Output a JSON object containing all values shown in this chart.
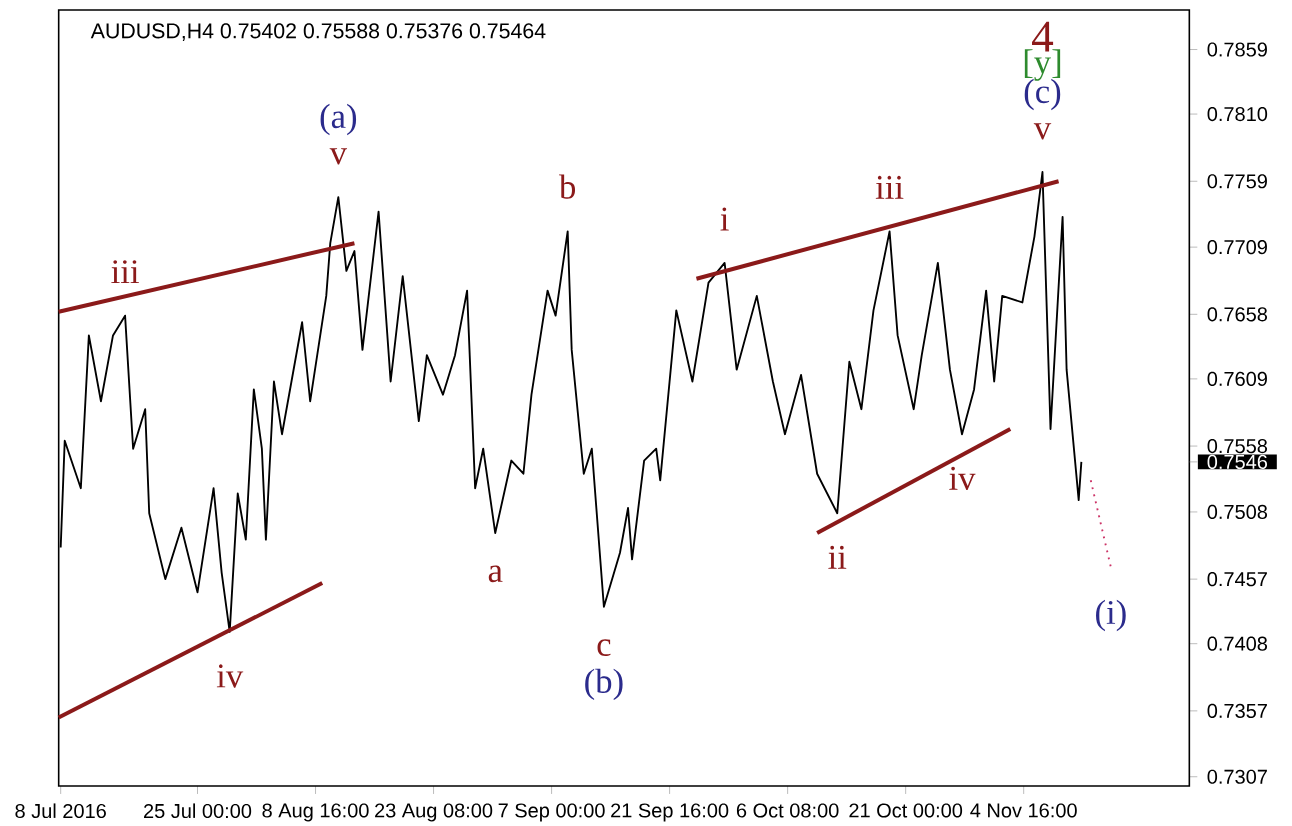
{
  "chart_data": {
    "type": "line",
    "title": "AUDUSD,H4  0.75402 0.75588 0.75376 0.75464",
    "xlim": [
      "2016-07-07T18:00",
      "2016-11-25T06:00"
    ],
    "ylim": [
      0.73,
      0.7889
    ],
    "xticks": [
      {
        "value": "2016-07-08",
        "label": "8 Jul 2016"
      },
      {
        "value": "2016-07-25T00:00",
        "label": "25 Jul 00:00"
      },
      {
        "value": "2016-08-08T16:00",
        "label": "8 Aug 16:00"
      },
      {
        "value": "2016-08-23T08:00",
        "label": "23 Aug 08:00"
      },
      {
        "value": "2016-09-07T00:00",
        "label": "7 Sep 00:00"
      },
      {
        "value": "2016-09-21T16:00",
        "label": "21 Sep 16:00"
      },
      {
        "value": "2016-10-06T08:00",
        "label": "6 Oct 08:00"
      },
      {
        "value": "2016-10-21T00:00",
        "label": "21 Oct 00:00"
      },
      {
        "value": "2016-11-04T16:00",
        "label": "4 Nov 16:00"
      }
    ],
    "yticks": [
      0.7307,
      0.7357,
      0.7408,
      0.7457,
      0.7508,
      0.7546,
      0.7558,
      0.7609,
      0.7658,
      0.7709,
      0.7759,
      {
        "value": 0.781,
        "label": "0.7810"
      },
      0.7859
    ],
    "series": [
      {
        "color": "#000000",
        "x": [
          "2016-07-08",
          "2016-07-08T12:00",
          "2016-07-10T12:00",
          "2016-07-11T12:00",
          "2016-07-13",
          "2016-07-14T12:00",
          "2016-07-16",
          "2016-07-17",
          "2016-07-18T12:00",
          "2016-07-19",
          "2016-07-21",
          "2016-07-23",
          "2016-07-25",
          "2016-07-27",
          "2016-07-28",
          "2016-07-29",
          "2016-07-30",
          "2016-07-31",
          "2016-08-01",
          "2016-08-02",
          "2016-08-02T12:00",
          "2016-08-03T12:00",
          "2016-08-04T12:00",
          "2016-08-07",
          "2016-08-08",
          "2016-08-10",
          "2016-08-10T12:00",
          "2016-08-11T12:00",
          "2016-08-12T12:00",
          "2016-08-13T12:00",
          "2016-08-14T12:00",
          "2016-08-16T12:00",
          "2016-08-18",
          "2016-08-19T12:00",
          "2016-08-21T12:00",
          "2016-08-22T12:00",
          "2016-08-24T12:00",
          "2016-08-26",
          "2016-08-27T12:00",
          "2016-08-28T12:00",
          "2016-08-29T12:00",
          "2016-08-31",
          "2016-09-02",
          "2016-09-03T12:00",
          "2016-09-04T12:00",
          "2016-09-06T12:00",
          "2016-09-07T12:00",
          "2016-09-09",
          "2016-09-09T12:00",
          "2016-09-11",
          "2016-09-12",
          "2016-09-13T12:00",
          "2016-09-15T12:00",
          "2016-09-16T12:00",
          "2016-09-17",
          "2016-09-18T12:00",
          "2016-09-20",
          "2016-09-20T12:00",
          "2016-09-22T12:00",
          "2016-09-24T12:00",
          "2016-09-26T12:00",
          "2016-09-28T12:00",
          "2016-09-30",
          "2016-10-02T12:00",
          "2016-10-04T12:00",
          "2016-10-06",
          "2016-10-08",
          "2016-10-10",
          "2016-10-12T12:00",
          "2016-10-14",
          "2016-10-15T12:00",
          "2016-10-17",
          "2016-10-19",
          "2016-10-20",
          "2016-10-22",
          "2016-10-23",
          "2016-10-25",
          "2016-10-26T12:00",
          "2016-10-28",
          "2016-10-29T12:00",
          "2016-10-31",
          "2016-11-01",
          "2016-11-02",
          "2016-11-04T12:00",
          "2016-11-06",
          "2016-11-07",
          "2016-11-08",
          "2016-11-09T12:00",
          "2016-11-10",
          "2016-11-11T12:00",
          "2016-11-11T20:00"
        ],
        "values": [
          0.7481,
          0.7562,
          0.7526,
          0.7642,
          0.7592,
          0.7642,
          0.7657,
          0.7556,
          0.7586,
          0.7507,
          0.7457,
          0.7496,
          0.7447,
          0.7526,
          0.7462,
          0.7417,
          0.7522,
          0.7487,
          0.7601,
          0.7556,
          0.7487,
          0.7607,
          0.7567,
          0.7652,
          0.7592,
          0.7672,
          0.7712,
          0.7747,
          0.7691,
          0.7706,
          0.7631,
          0.7736,
          0.7607,
          0.7687,
          0.7577,
          0.7627,
          0.7597,
          0.7627,
          0.7676,
          0.7526,
          0.7556,
          0.7492,
          0.7547,
          0.7537,
          0.7597,
          0.7676,
          0.7657,
          0.7721,
          0.7631,
          0.7537,
          0.7556,
          0.7436,
          0.7477,
          0.7511,
          0.7472,
          0.7547,
          0.7556,
          0.7532,
          0.7661,
          0.7607,
          0.7682,
          0.7697,
          0.7616,
          0.7672,
          0.7607,
          0.7567,
          0.7612,
          0.7537,
          0.7507,
          0.7622,
          0.7586,
          0.7661,
          0.7721,
          0.7642,
          0.7586,
          0.7627,
          0.7697,
          0.7616,
          0.7567,
          0.7601,
          0.7676,
          0.7607,
          0.7672,
          0.7667,
          0.7717,
          0.7766,
          0.7571,
          0.7732,
          0.7616,
          0.7517,
          0.7546
        ]
      },
      {
        "color": "#8b1a1a",
        "x": [
          "2016-07-07T18:00",
          "2016-08-13T12:00"
        ],
        "values": [
          0.766,
          0.7712
        ]
      },
      {
        "color": "#8b1a1a",
        "x": [
          "2016-07-07T18:00",
          "2016-08-09T12:00"
        ],
        "values": [
          0.7352,
          0.7454
        ]
      },
      {
        "color": "#8b1a1a",
        "x": [
          "2016-09-25",
          "2016-11-09"
        ],
        "values": [
          0.7685,
          0.7759
        ]
      },
      {
        "color": "#8b1a1a",
        "x": [
          "2016-10-10",
          "2016-11-03"
        ],
        "values": [
          0.7492,
          0.7571
        ]
      },
      {
        "color": "#cc3366",
        "line_style": "dotted",
        "x": [
          "2016-11-13",
          "2016-11-15T12:00"
        ],
        "values": [
          0.7532,
          0.7466
        ]
      }
    ],
    "annotations": [
      {
        "text": "4",
        "x": "2016-11-07",
        "y": 0.7766
      },
      {
        "text": "[y]",
        "x": "2016-11-07",
        "y": 0.7766
      },
      {
        "text": "(c)",
        "x": "2016-11-07",
        "y": 0.7766
      },
      {
        "text": "v",
        "x": "2016-11-07",
        "y": 0.7766
      },
      {
        "text": "(a)",
        "x": "2016-08-11T12:00",
        "y": 0.7747
      },
      {
        "text": "v",
        "x": "2016-08-11T12:00",
        "y": 0.7747
      },
      {
        "text": "iii",
        "x": "2016-07-16",
        "y": 0.7657
      },
      {
        "text": "iv",
        "x": "2016-07-29",
        "y": 0.7417
      },
      {
        "text": "a",
        "x": "2016-08-31",
        "y": 0.7492
      },
      {
        "text": "b",
        "x": "2016-09-09",
        "y": 0.7721
      },
      {
        "text": "c",
        "x": "2016-09-13T12:00",
        "y": 0.7436
      },
      {
        "text": "(b)",
        "x": "2016-09-13T12:00",
        "y": 0.7436
      },
      {
        "text": "i",
        "x": "2016-09-28T12:00",
        "y": 0.7697
      },
      {
        "text": "iii",
        "x": "2016-10-19",
        "y": 0.7721
      },
      {
        "text": "ii",
        "x": "2016-10-12T12:00",
        "y": 0.7507
      },
      {
        "text": "iv",
        "x": "2016-10-28",
        "y": 0.7567
      },
      {
        "text": "(i)",
        "x": "2016-11-15T12:00",
        "y": 0.7466
      }
    ]
  }
}
